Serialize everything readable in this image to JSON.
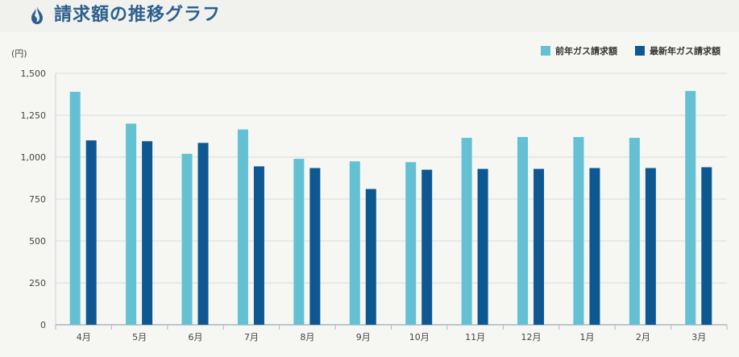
{
  "header": {
    "title": "請求額の推移グラフ",
    "icon": "flame-icon"
  },
  "colors": {
    "title": "#2d5f8e",
    "prev": "#63c1d3",
    "latest": "#0e5892"
  },
  "chart_data": {
    "type": "bar",
    "unit": "(円)",
    "categories": [
      "4月",
      "5月",
      "6月",
      "7月",
      "8月",
      "9月",
      "10月",
      "11月",
      "12月",
      "1月",
      "2月",
      "3月"
    ],
    "series": [
      {
        "name": "前年ガス請求額",
        "values": [
          1390,
          1200,
          1020,
          1165,
          990,
          975,
          970,
          1115,
          1120,
          1120,
          1115,
          1395
        ]
      },
      {
        "name": "最新年ガス請求額",
        "values": [
          1100,
          1095,
          1085,
          945,
          935,
          810,
          925,
          930,
          930,
          935,
          935,
          940
        ]
      }
    ],
    "yticks": [
      0,
      250,
      500,
      750,
      1000,
      1250,
      1500
    ],
    "ytick_labels": [
      "0",
      "250",
      "500",
      "750",
      "1,000",
      "1,250",
      "1,500"
    ],
    "ylim": [
      0,
      1500
    ],
    "grid": true,
    "legend_position": "top-right"
  }
}
